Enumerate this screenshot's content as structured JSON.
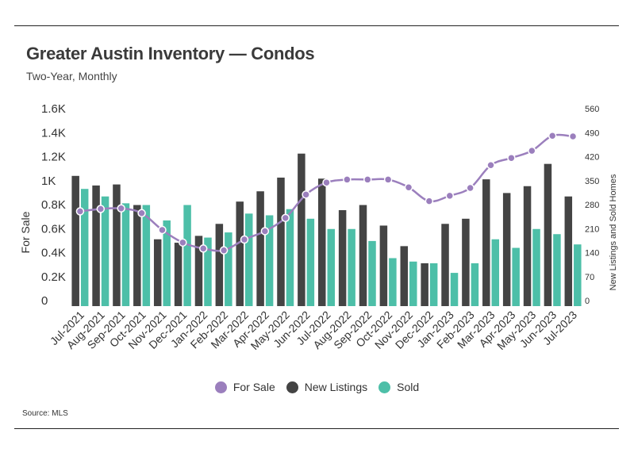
{
  "title": "Greater Austin Inventory — Condos",
  "subtitle": "Two-Year, Monthly",
  "source": "Source: MLS",
  "colors": {
    "for_sale": "#9b7fbd",
    "new_listings": "#444444",
    "sold": "#4dbfa8"
  },
  "chart_data": {
    "type": "bar",
    "categories": [
      "Jul-2021",
      "Aug-2021",
      "Sep-2021",
      "Oct-2021",
      "Nov-2021",
      "Dec-2021",
      "Jan-2022",
      "Feb-2022",
      "Mar-2022",
      "Apr-2022",
      "May-2022",
      "Jun-2022",
      "Jul-2022",
      "Aug-2022",
      "Sep-2022",
      "Oct-2022",
      "Nov-2022",
      "Dec-2022",
      "Jan-2023",
      "Feb-2023",
      "Mar-2023",
      "Apr-2023",
      "May-2023",
      "Jun-2023",
      "Jul-2023"
    ],
    "ylabel": "For Sale",
    "y2label": "New Listings and Sold Homes",
    "y_ticks": [
      "0",
      "0.2K",
      "0.4K",
      "0.6K",
      "0.8K",
      "1K",
      "1.2K",
      "1.4K",
      "1.6K"
    ],
    "y2_ticks": [
      "0",
      "70",
      "140",
      "210",
      "280",
      "350",
      "420",
      "490",
      "560"
    ],
    "ylim": [
      0,
      1600
    ],
    "y2lim": [
      0,
      560
    ],
    "grid": false,
    "legend_position": "bottom",
    "series": [
      {
        "name": "For Sale",
        "type": "line",
        "axis": "left",
        "values": [
          790,
          810,
          815,
          775,
          635,
          530,
          480,
          465,
          555,
          625,
          735,
          930,
          1030,
          1055,
          1055,
          1055,
          990,
          875,
          920,
          985,
          1175,
          1235,
          1295,
          1420,
          1415
        ]
      },
      {
        "name": "New Listings",
        "type": "bar",
        "axis": "right",
        "values": [
          380,
          352,
          355,
          295,
          195,
          185,
          205,
          240,
          305,
          335,
          375,
          445,
          372,
          280,
          295,
          235,
          175,
          125,
          240,
          255,
          370,
          330,
          350,
          415,
          320
        ]
      },
      {
        "name": "Sold",
        "type": "bar",
        "axis": "right",
        "values": [
          342,
          320,
          300,
          295,
          250,
          295,
          200,
          215,
          270,
          265,
          283,
          255,
          225,
          225,
          190,
          140,
          130,
          125,
          97,
          125,
          195,
          170,
          225,
          210,
          180
        ]
      }
    ]
  }
}
